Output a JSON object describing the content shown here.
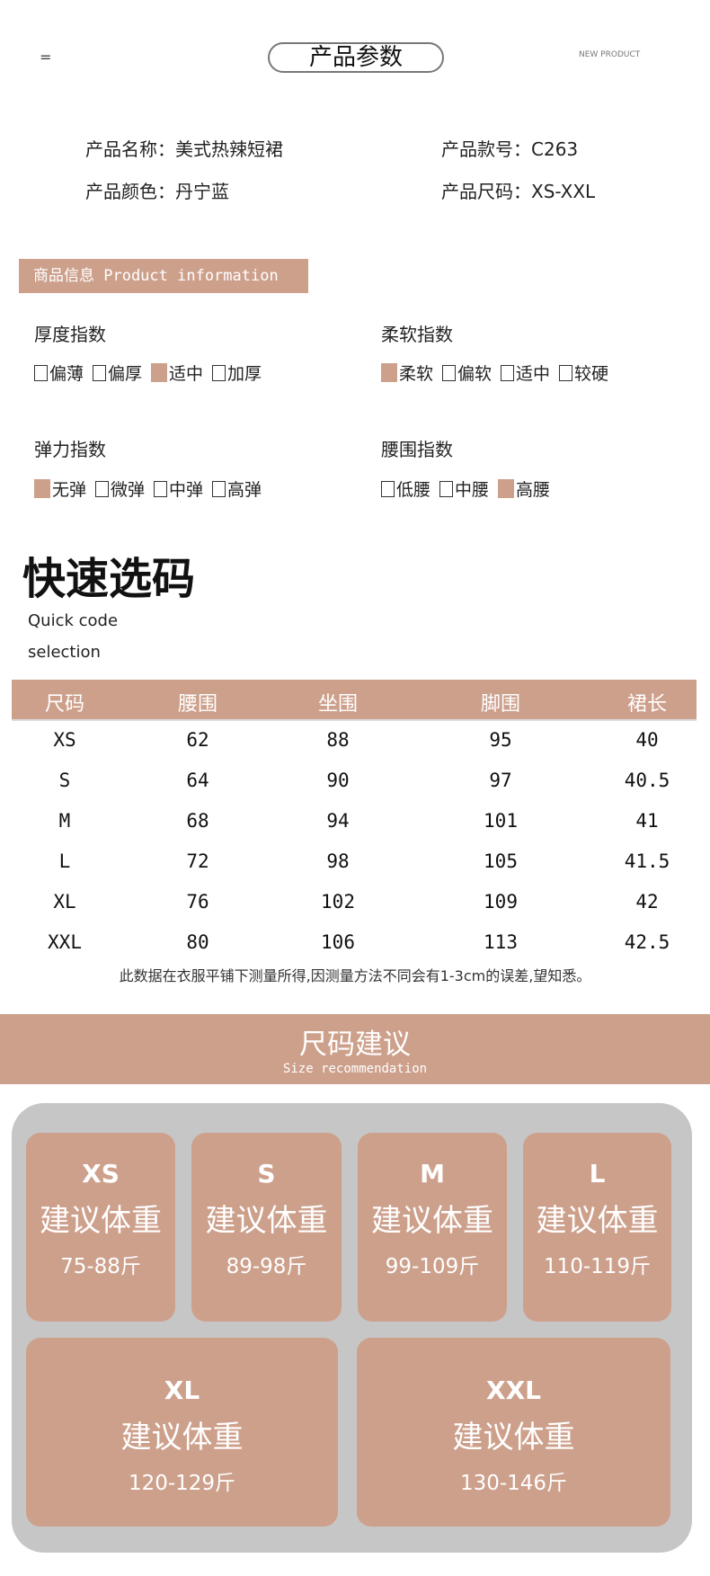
{
  "header": {
    "menu_icon": "=",
    "title": "产品参数",
    "tag": "NEW PRODUCT"
  },
  "product": {
    "name": "产品名称：美式热辣短裙",
    "style_no": "产品款号：C263",
    "color": "产品颜色：丹宁蓝",
    "size": "产品尺码：XS-XXL"
  },
  "info_bar": "商品信息 Product information",
  "accent_color": "#cda08c",
  "indices": [
    {
      "title": "厚度指数",
      "options": [
        {
          "label": "偏薄",
          "checked": false
        },
        {
          "label": "偏厚",
          "checked": false
        },
        {
          "label": "适中",
          "checked": true
        },
        {
          "label": "加厚",
          "checked": false
        }
      ]
    },
    {
      "title": "柔软指数",
      "options": [
        {
          "label": "柔软",
          "checked": true
        },
        {
          "label": "偏软",
          "checked": false
        },
        {
          "label": "适中",
          "checked": false
        },
        {
          "label": "较硬",
          "checked": false
        }
      ]
    },
    {
      "title": "弹力指数",
      "options": [
        {
          "label": "无弹",
          "checked": true
        },
        {
          "label": "微弹",
          "checked": false
        },
        {
          "label": "中弹",
          "checked": false
        },
        {
          "label": "高弹",
          "checked": false
        }
      ]
    },
    {
      "title": "腰围指数",
      "options": [
        {
          "label": "低腰",
          "checked": false
        },
        {
          "label": "中腰",
          "checked": false
        },
        {
          "label": "高腰",
          "checked": true
        }
      ]
    }
  ],
  "quick": {
    "title": "快速选码",
    "sub1": "Quick code",
    "sub2": "selection"
  },
  "table": {
    "headers": [
      "尺码",
      "腰围",
      "坐围",
      "脚围",
      "裙长"
    ],
    "rows": [
      [
        "XS",
        "62",
        "88",
        "95",
        "40"
      ],
      [
        "S",
        "64",
        "90",
        "97",
        "40.5"
      ],
      [
        "M",
        "68",
        "94",
        "101",
        "41"
      ],
      [
        "L",
        "72",
        "98",
        "105",
        "41.5"
      ],
      [
        "XL",
        "76",
        "102",
        "109",
        "42"
      ],
      [
        "XXL",
        "80",
        "106",
        "113",
        "42.5"
      ]
    ],
    "note": "此数据在衣服平铺下测量所得,因测量方法不同会有1-3cm的误差,望知悉。"
  },
  "recommend": {
    "title": "尺码建议",
    "subtitle": "Size recommendation",
    "label": "建议体重",
    "cards": [
      {
        "size": "XS",
        "weight": "75-88斤"
      },
      {
        "size": "S",
        "weight": "89-98斤"
      },
      {
        "size": "M",
        "weight": "99-109斤"
      },
      {
        "size": "L",
        "weight": "110-119斤"
      },
      {
        "size": "XL",
        "weight": "120-129斤"
      },
      {
        "size": "XXL",
        "weight": "130-146斤"
      }
    ]
  }
}
